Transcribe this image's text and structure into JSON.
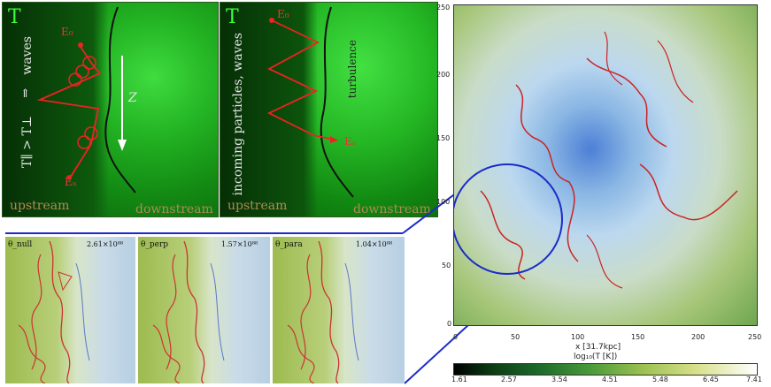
{
  "panel_left": {
    "letter": "T",
    "waves": "waves",
    "relation": "T∥ > T⊥",
    "arrow": "⇑",
    "e0": "E₀",
    "en": "Eₙ",
    "z": "Z",
    "upstream": "upstream",
    "downstream": "downstream"
  },
  "panel_mid": {
    "letter": "T",
    "side_text": "incoming particles, waves",
    "turbulence": "turbulence",
    "e0": "E₀",
    "en": "Eₙ",
    "upstream": "upstream",
    "downstream": "downstream"
  },
  "subpanels": [
    {
      "label": "θ_null",
      "value": "2.61×10⁸⁸"
    },
    {
      "label": "θ_perp",
      "value": "1.57×10⁸⁸"
    },
    {
      "label": "θ_para",
      "value": "1.04×10⁸⁸"
    }
  ],
  "right_plot": {
    "y_ticks": [
      "250",
      "200",
      "150",
      "100",
      "50",
      "0"
    ],
    "x_ticks": [
      "0",
      "50",
      "100",
      "150",
      "200",
      "250"
    ],
    "xlabel": "x [31.7kpc]",
    "colorbar_label": "log₁₀(T [K])",
    "colorbar_ticks": [
      "1.61",
      "2.57",
      "3.54",
      "4.51",
      "5.48",
      "6.45",
      "7.41"
    ]
  }
}
